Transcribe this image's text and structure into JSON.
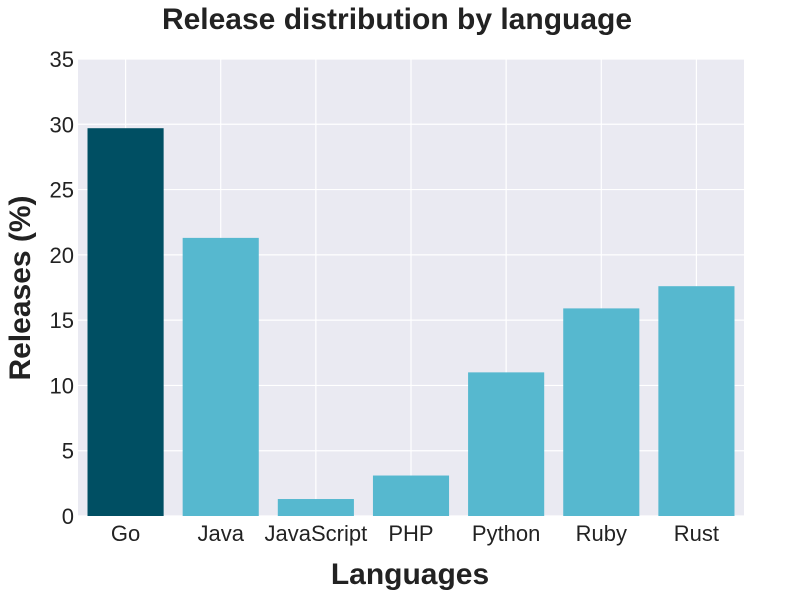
{
  "chart_data": {
    "type": "bar",
    "title": "Release distribution by language",
    "xlabel": "Languages",
    "ylabel": "Releases (%)",
    "categories": [
      "Go",
      "Java",
      "JavaScript",
      "PHP",
      "Python",
      "Ruby",
      "Rust"
    ],
    "values": [
      29.7,
      21.3,
      1.3,
      3.1,
      11.0,
      15.9,
      17.6
    ],
    "ylim": [
      0,
      35
    ],
    "yticks": [
      "0",
      "5",
      "10",
      "15",
      "20",
      "25",
      "30",
      "35"
    ],
    "grid": true,
    "highlight_index": 0,
    "colors": {
      "plot_background": "#eaeaf2",
      "bar": "#56b8cf",
      "bar_highlight": "#004f63",
      "grid": "#ffffff"
    }
  }
}
